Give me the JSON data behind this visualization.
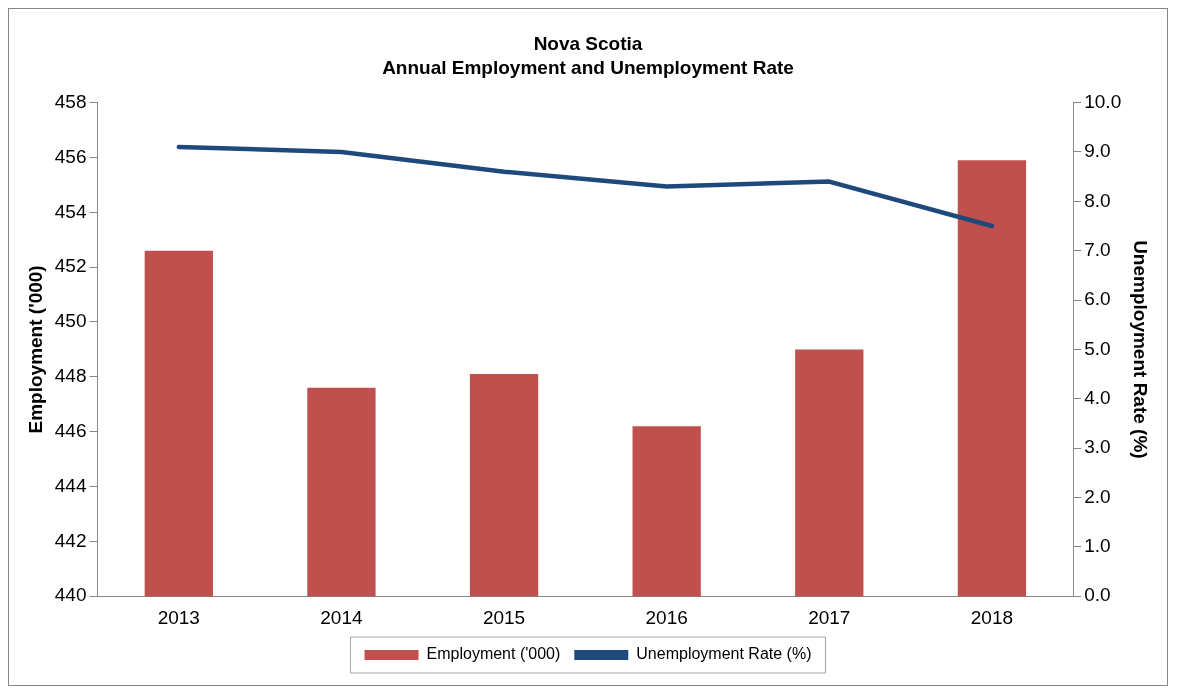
{
  "chart_data": {
    "type": "bar",
    "title": "Nova Scotia",
    "subtitle": "Annual Employment and Unemployment Rate",
    "ylabel": "Employment ('000)",
    "y2label": "Unemployment Rate (%)",
    "categories": [
      "2013",
      "2014",
      "2015",
      "2016",
      "2017",
      "2018"
    ],
    "series": [
      {
        "name": "Employment ('000)",
        "color": "#c0504d",
        "values": [
          452.6,
          447.6,
          448.1,
          446.2,
          449.0,
          455.9
        ]
      },
      {
        "name": "Unemployment Rate (%)",
        "type": "line",
        "axis": "y2",
        "color": "#1f497d",
        "marker": "none",
        "values": [
          9.1,
          9.0,
          8.6,
          8.3,
          8.4,
          7.5
        ]
      }
    ],
    "ylim": [
      440,
      458
    ],
    "yticks": [
      440,
      442,
      444,
      446,
      448,
      450,
      452,
      454,
      456,
      458
    ],
    "y2lim": [
      0,
      10
    ],
    "y2ticks": [
      {
        "value": 0,
        "label": "0.0"
      },
      {
        "value": 1,
        "label": "1.0"
      },
      {
        "value": 2,
        "label": "2.0"
      },
      {
        "value": 3,
        "label": "3.0"
      },
      {
        "value": 4,
        "label": "4.0"
      },
      {
        "value": 5,
        "label": "5.0"
      },
      {
        "value": 6,
        "label": "6.0"
      },
      {
        "value": 7,
        "label": "7.0"
      },
      {
        "value": 8,
        "label": "8.0"
      },
      {
        "value": 9,
        "label": "9.0"
      },
      {
        "value": 10,
        "label": "10.0"
      }
    ],
    "legend": "bottom"
  }
}
